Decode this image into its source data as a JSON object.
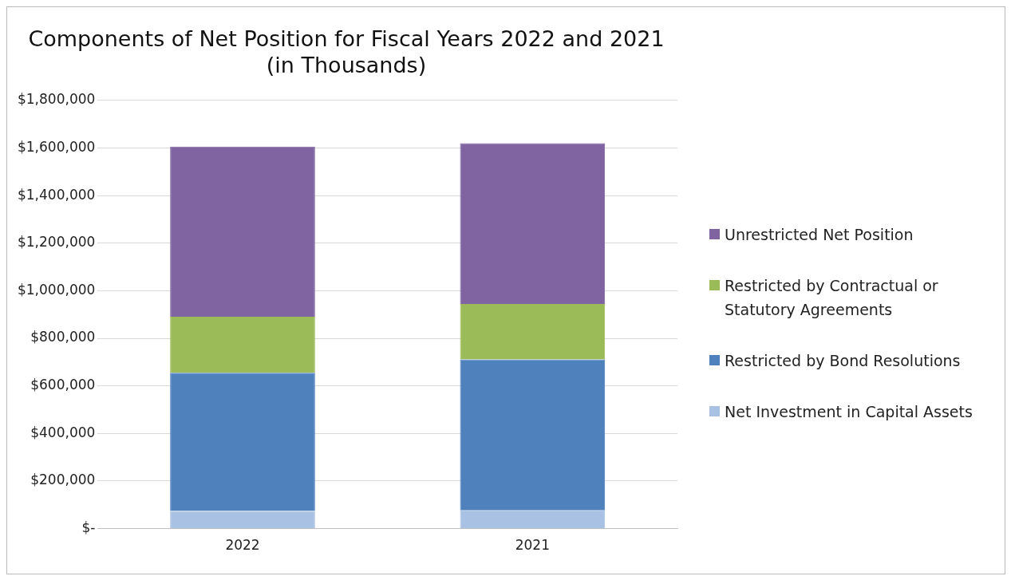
{
  "chart_data": {
    "type": "bar",
    "title": "Components of Net Position for Fiscal Years 2022 and 2021\n(in Thousands)",
    "categories": [
      "2022",
      "2021"
    ],
    "stacked": true,
    "series": [
      {
        "name": "Net Investment in Capital Assets",
        "color": "#a9c1e3",
        "values": [
          74000,
          77000
        ]
      },
      {
        "name": "Restricted by Bond Resolutions",
        "color": "#4f81bd",
        "values": [
          581000,
          634000
        ]
      },
      {
        "name": "Restricted by Contractual or Statutory Agreements",
        "color": "#9bbb59",
        "values": [
          236000,
          233000
        ]
      },
      {
        "name": "Unrestricted Net Position",
        "color": "#8064a2",
        "values": [
          715000,
          676000
        ]
      }
    ],
    "ylim": [
      0,
      1800000
    ],
    "yticks": [
      {
        "value": 0,
        "label": "$-"
      },
      {
        "value": 200000,
        "label": "$200,000"
      },
      {
        "value": 400000,
        "label": "$400,000"
      },
      {
        "value": 600000,
        "label": "$600,000"
      },
      {
        "value": 800000,
        "label": "$800,000"
      },
      {
        "value": 1000000,
        "label": "$1,000,000"
      },
      {
        "value": 1200000,
        "label": "$1,200,000"
      },
      {
        "value": 1400000,
        "label": "$1,400,000"
      },
      {
        "value": 1600000,
        "label": "$1,600,000"
      },
      {
        "value": 1800000,
        "label": "$1,800,000"
      }
    ],
    "grid": "y",
    "legend": "right"
  }
}
